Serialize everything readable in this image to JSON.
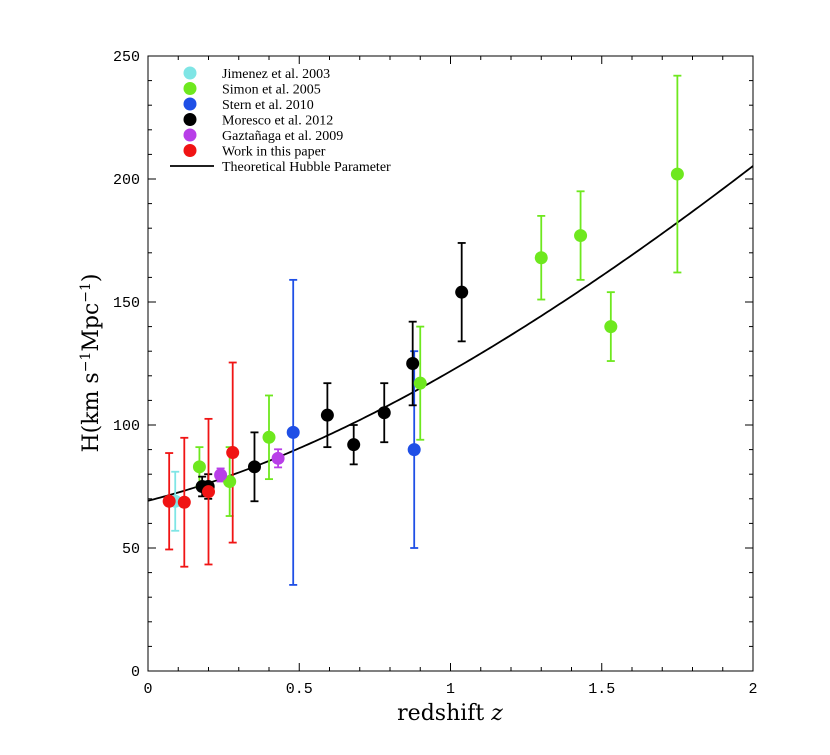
{
  "chart_data": {
    "type": "scatter",
    "title": "",
    "xlabel": "redshift z",
    "ylabel": "H(km s⁻¹Mpc⁻¹)",
    "xlim": [
      0,
      2
    ],
    "ylim": [
      0,
      250
    ],
    "x_ticks": [
      0,
      0.5,
      1,
      1.5,
      2
    ],
    "x_tick_labels": [
      "0",
      "0.5",
      "1",
      "1.5",
      "2"
    ],
    "y_ticks": [
      0,
      50,
      100,
      150,
      200,
      250
    ],
    "y_tick_labels": [
      "0",
      "50",
      "100",
      "150",
      "200",
      "250"
    ],
    "legend_position": "top-left",
    "series": [
      {
        "name": "Jimenez et al. 2003",
        "color": "#7fe5e5",
        "points": [
          {
            "x": 0.09,
            "y": 69,
            "err": 12
          }
        ]
      },
      {
        "name": "Simon et al. 2005",
        "color": "#6ee81e",
        "points": [
          {
            "x": 0.17,
            "y": 83,
            "err": 8
          },
          {
            "x": 0.27,
            "y": 77,
            "err": 14
          },
          {
            "x": 0.4,
            "y": 95,
            "err": 17
          },
          {
            "x": 0.9,
            "y": 117,
            "err": 23
          },
          {
            "x": 1.3,
            "y": 168,
            "err": 17
          },
          {
            "x": 1.43,
            "y": 177,
            "err": 18
          },
          {
            "x": 1.53,
            "y": 140,
            "err": 14
          },
          {
            "x": 1.75,
            "y": 202,
            "err": 40
          }
        ]
      },
      {
        "name": "Stern et al. 2010",
        "color": "#1f4fe6",
        "points": [
          {
            "x": 0.48,
            "y": 97,
            "err": 62
          },
          {
            "x": 0.88,
            "y": 90,
            "err": 40
          }
        ]
      },
      {
        "name": "Moresco et al. 2012",
        "color": "#000000",
        "points": [
          {
            "x": 0.179,
            "y": 75,
            "err": 4
          },
          {
            "x": 0.199,
            "y": 75,
            "err": 5
          },
          {
            "x": 0.352,
            "y": 83,
            "err": 14
          },
          {
            "x": 0.593,
            "y": 104,
            "err": 13
          },
          {
            "x": 0.68,
            "y": 92,
            "err": 8
          },
          {
            "x": 0.781,
            "y": 105,
            "err": 12
          },
          {
            "x": 0.875,
            "y": 125,
            "err": 17
          },
          {
            "x": 1.037,
            "y": 154,
            "err": 20
          }
        ]
      },
      {
        "name": "Gaztañaga et al. 2009",
        "color": "#b83ee8",
        "points": [
          {
            "x": 0.24,
            "y": 79.69,
            "err": 2.65
          },
          {
            "x": 0.43,
            "y": 86.45,
            "err": 3.68
          }
        ]
      },
      {
        "name": "Work in this paper",
        "color": "#f01414",
        "points": [
          {
            "x": 0.07,
            "y": 69,
            "err": 19.6
          },
          {
            "x": 0.12,
            "y": 68.6,
            "err": 26.2
          },
          {
            "x": 0.2,
            "y": 72.9,
            "err": 29.6
          },
          {
            "x": 0.28,
            "y": 88.8,
            "err": 36.6
          }
        ]
      }
    ],
    "curve": {
      "name": "Theoretical Hubble Parameter",
      "color": "#000000",
      "H0": 69.2,
      "Om": 0.3,
      "x_range": [
        0,
        2
      ]
    }
  }
}
